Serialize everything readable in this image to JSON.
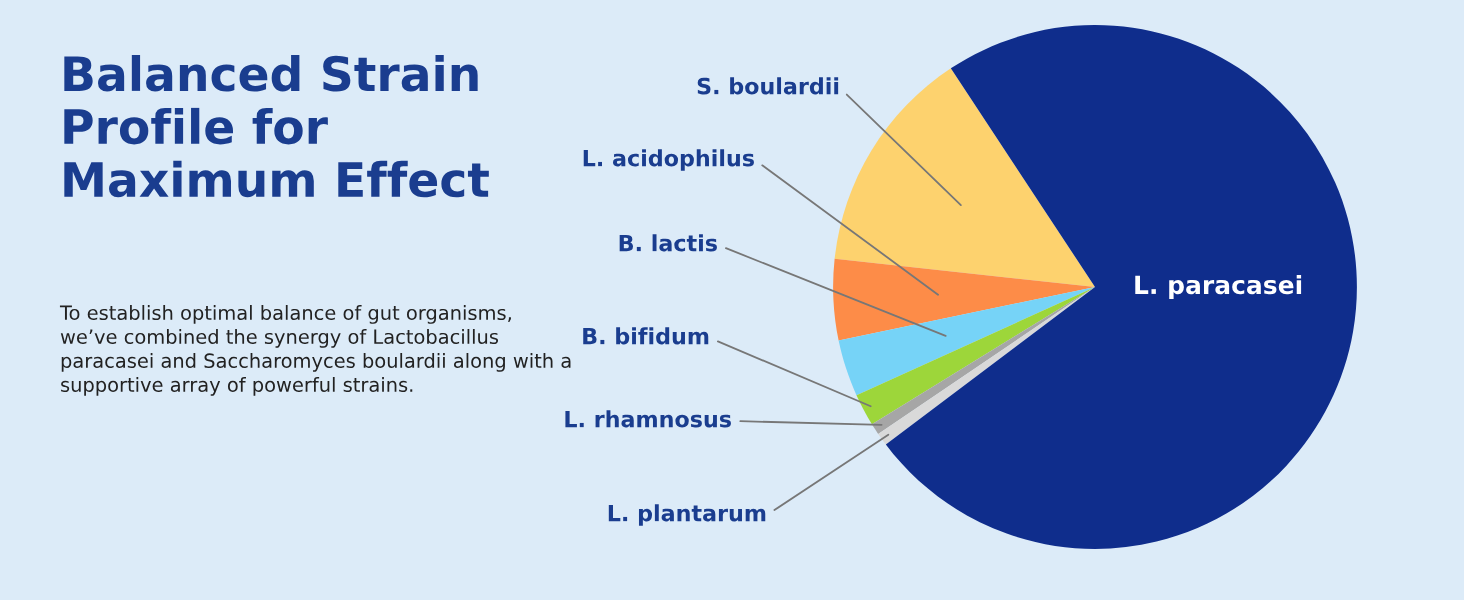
{
  "chart_data": {
    "type": "pie",
    "title": "Balanced Strain Profile for Maximum Effect",
    "subtitle": "To establish optimal balance of gut organisms, we’ve combined the synergy of Lactobacillus paracasei and Saccharomyces boulardii along with a supportive array of powerful strains.",
    "categories": [
      "S. boulardii",
      "L. acidophilus",
      "B. lactis",
      "B. bifidum",
      "L. rhamnosus",
      "L. plantarum",
      "L. paracasei"
    ],
    "values": [
      14,
      5,
      3.5,
      2,
      0.7,
      0.8,
      74
    ],
    "colors": [
      "#fdd26e",
      "#fd8c48",
      "#76d3f7",
      "#9dd63a",
      "#a6a6a6",
      "#d9d9d9",
      "#0f2d8c"
    ]
  }
}
